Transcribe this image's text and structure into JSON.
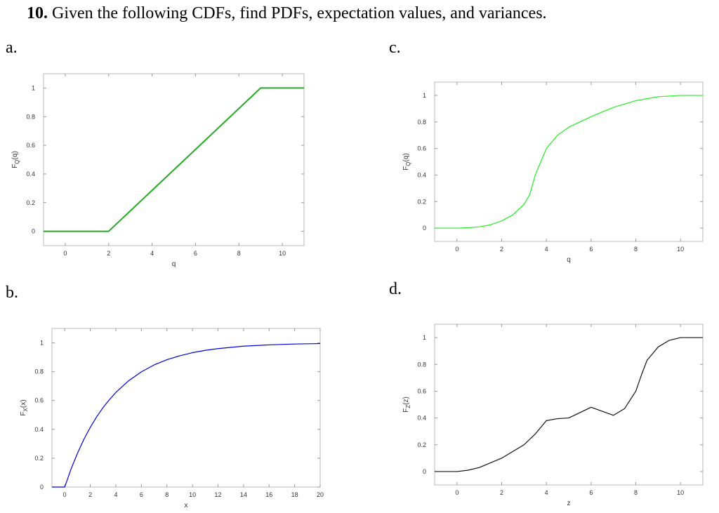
{
  "question": {
    "number": "10.",
    "text": "Given the following CDFs, find PDFs, expectation values, and variances."
  },
  "chart_data": [
    {
      "panel_label": "a.",
      "type": "line",
      "xlabel": "q",
      "ylabel": "F",
      "ylabel_sub": "Q",
      "ylabel_arg": "(q)",
      "xlim": [
        -1,
        11
      ],
      "ylim": [
        -0.1,
        1.1
      ],
      "xticks": [
        0,
        2,
        4,
        6,
        8,
        10
      ],
      "yticks": [
        0,
        0.2,
        0.4,
        0.6,
        0.8,
        1
      ],
      "grid": false,
      "color": "#22aa22",
      "series": [
        {
          "x": [
            -1,
            2,
            9,
            11
          ],
          "y": [
            0,
            0,
            1,
            1
          ]
        }
      ]
    },
    {
      "panel_label": "b.",
      "type": "line",
      "xlabel": "x",
      "ylabel": "F",
      "ylabel_sub": "X",
      "ylabel_arg": "(x)",
      "xlim": [
        -1,
        20
      ],
      "ylim": [
        0,
        1.1
      ],
      "xticks": [
        0,
        2,
        4,
        6,
        8,
        10,
        12,
        14,
        16,
        18,
        20
      ],
      "yticks": [
        0,
        0.2,
        0.4,
        0.6,
        0.8,
        1
      ],
      "grid": false,
      "color": "#0000dd",
      "series": [
        {
          "x": [
            -1,
            0,
            0.5,
            1,
            1.5,
            2,
            2.5,
            3,
            3.5,
            4,
            5,
            6,
            7,
            8,
            9,
            10,
            11,
            12,
            14,
            16,
            18,
            20
          ],
          "y": [
            0,
            0,
            0.126,
            0.235,
            0.331,
            0.414,
            0.487,
            0.551,
            0.606,
            0.656,
            0.737,
            0.799,
            0.847,
            0.883,
            0.91,
            0.932,
            0.948,
            0.96,
            0.977,
            0.986,
            0.992,
            0.995
          ]
        }
      ]
    },
    {
      "panel_label": "c.",
      "type": "line",
      "xlabel": "q",
      "ylabel": "F",
      "ylabel_sub": "Q",
      "ylabel_arg": "(q)",
      "xlim": [
        -1,
        11
      ],
      "ylim": [
        -0.1,
        1.1
      ],
      "xticks": [
        0,
        2,
        4,
        6,
        8,
        10
      ],
      "yticks": [
        0,
        0.2,
        0.4,
        0.6,
        0.8,
        1
      ],
      "grid": false,
      "color": "#22ee22",
      "series": [
        {
          "x": [
            -1,
            0,
            0.5,
            1,
            1.5,
            2,
            2.5,
            3,
            3.25,
            3.5,
            4,
            4.5,
            5,
            6,
            7,
            8,
            9,
            10,
            11
          ],
          "y": [
            0,
            0,
            0.003,
            0.01,
            0.025,
            0.055,
            0.1,
            0.18,
            0.25,
            0.4,
            0.6,
            0.7,
            0.76,
            0.84,
            0.91,
            0.96,
            0.99,
            1,
            1
          ]
        }
      ]
    },
    {
      "panel_label": "d.",
      "type": "line",
      "xlabel": "z",
      "ylabel": "F",
      "ylabel_sub": "Z",
      "ylabel_arg": "(z)",
      "xlim": [
        -1,
        11
      ],
      "ylim": [
        -0.1,
        1.1
      ],
      "xticks": [
        0,
        2,
        4,
        6,
        8,
        10
      ],
      "yticks": [
        0,
        0.2,
        0.4,
        0.6,
        0.8,
        1
      ],
      "grid": false,
      "color": "#111111",
      "series": [
        {
          "x": [
            -1,
            0,
            0.5,
            1,
            2,
            3,
            3.5,
            4,
            4.5,
            5,
            5.5,
            6,
            6.5,
            7,
            7.5,
            8,
            8.25,
            8.5,
            9,
            9.5,
            10,
            11
          ],
          "y": [
            0,
            0,
            0.01,
            0.03,
            0.1,
            0.2,
            0.28,
            0.38,
            0.395,
            0.4,
            0.44,
            0.48,
            0.45,
            0.42,
            0.47,
            0.6,
            0.72,
            0.83,
            0.93,
            0.98,
            1,
            1
          ]
        }
      ]
    }
  ]
}
